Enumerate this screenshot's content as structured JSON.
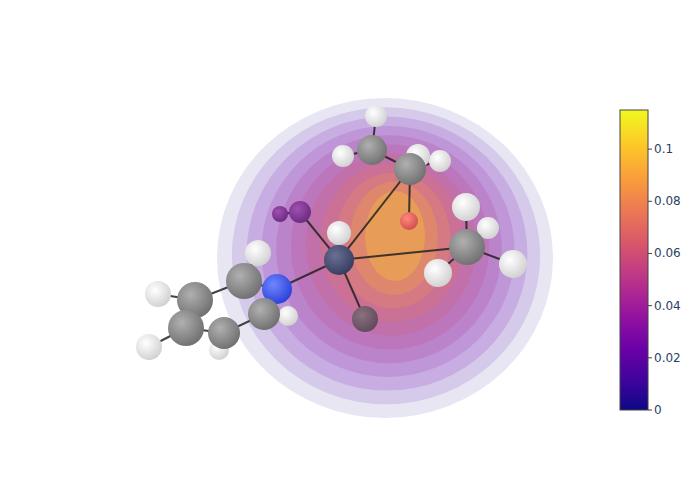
{
  "chart_data": {
    "type": "volume",
    "levels": [
      0.005,
      0.015,
      0.025,
      0.035,
      0.045,
      0.055,
      0.065,
      0.075,
      0.085,
      0.095,
      0.105
    ],
    "colorbar": {
      "range": [
        0,
        0.115
      ],
      "ticks": [
        0,
        0.02,
        0.04,
        0.06,
        0.08,
        0.1
      ]
    }
  }
}
